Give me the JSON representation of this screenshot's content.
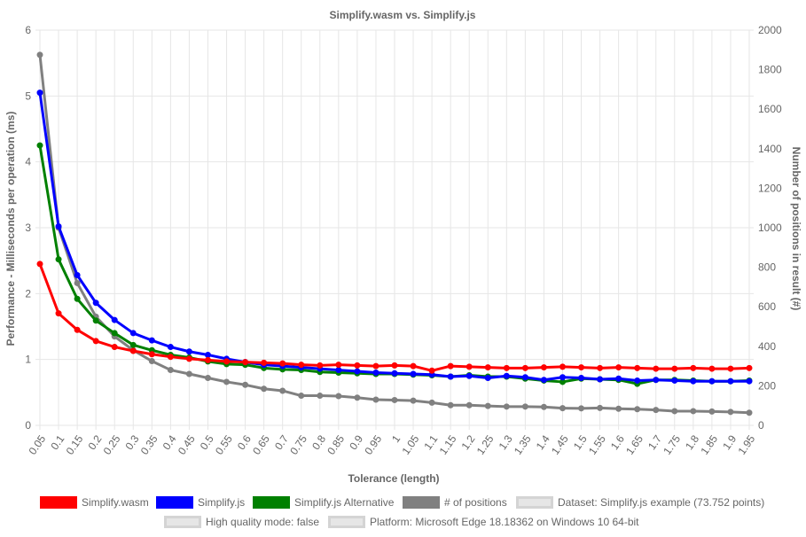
{
  "chart_data": {
    "type": "line",
    "title": "Simplify.wasm vs. Simplify.js",
    "xlabel": "Tolerance (length)",
    "ylabel": "Performance - Milliseconds per operation (ms)",
    "y2label": "Number of positions in result (#)",
    "categories": [
      "0.05",
      "0.1",
      "0.15",
      "0.2",
      "0.25",
      "0.3",
      "0.35",
      "0.4",
      "0.45",
      "0.5",
      "0.55",
      "0.6",
      "0.65",
      "0.7",
      "0.75",
      "0.8",
      "0.85",
      "0.9",
      "0.95",
      "1",
      "1.05",
      "1.1",
      "1.15",
      "1.2",
      "1.25",
      "1.3",
      "1.35",
      "1.4",
      "1.45",
      "1.5",
      "1.55",
      "1.6",
      "1.65",
      "1.7",
      "1.75",
      "1.8",
      "1.85",
      "1.9",
      "1.95"
    ],
    "ylim": [
      0,
      6
    ],
    "yticks": [
      "0",
      "1",
      "2",
      "3",
      "4",
      "5",
      "6"
    ],
    "y2lim": [
      0,
      2000
    ],
    "y2ticks": [
      "0",
      "200",
      "400",
      "600",
      "800",
      "1000",
      "1200",
      "1400",
      "1600",
      "1800",
      "2000"
    ],
    "grid": true,
    "legend_position": "bottom",
    "series": [
      {
        "name": "Simplify.wasm",
        "axis": "left",
        "color": "#ff0000",
        "values": [
          2.45,
          1.7,
          1.45,
          1.28,
          1.19,
          1.13,
          1.08,
          1.04,
          1.01,
          0.99,
          0.97,
          0.96,
          0.95,
          0.94,
          0.92,
          0.91,
          0.92,
          0.91,
          0.9,
          0.91,
          0.9,
          0.83,
          0.9,
          0.89,
          0.88,
          0.87,
          0.87,
          0.88,
          0.89,
          0.88,
          0.87,
          0.88,
          0.87,
          0.86,
          0.86,
          0.87,
          0.86,
          0.86,
          0.87
        ]
      },
      {
        "name": "Simplify.js",
        "axis": "left",
        "color": "#0000ff",
        "values": [
          5.05,
          3.02,
          2.28,
          1.86,
          1.6,
          1.4,
          1.29,
          1.19,
          1.12,
          1.07,
          1.01,
          0.96,
          0.92,
          0.9,
          0.88,
          0.86,
          0.84,
          0.82,
          0.8,
          0.79,
          0.78,
          0.77,
          0.74,
          0.75,
          0.72,
          0.75,
          0.73,
          0.69,
          0.73,
          0.72,
          0.7,
          0.71,
          0.68,
          0.69,
          0.68,
          0.67,
          0.67,
          0.67,
          0.67
        ]
      },
      {
        "name": "Simplify.js Alternative",
        "axis": "left",
        "color": "#008000",
        "values": [
          4.25,
          2.52,
          1.92,
          1.59,
          1.4,
          1.22,
          1.14,
          1.07,
          1.03,
          0.97,
          0.93,
          0.92,
          0.87,
          0.85,
          0.84,
          0.81,
          0.8,
          0.79,
          0.78,
          0.78,
          0.77,
          0.76,
          0.74,
          0.76,
          0.74,
          0.74,
          0.71,
          0.68,
          0.66,
          0.71,
          0.7,
          0.69,
          0.63,
          0.69,
          0.69,
          0.68,
          0.67,
          0.67,
          0.68
        ]
      },
      {
        "name": "# of positions",
        "axis": "right",
        "color": "#808080",
        "values": [
          1875,
          1000,
          720,
          550,
          450,
          380,
          325,
          280,
          260,
          240,
          220,
          205,
          185,
          175,
          150,
          150,
          148,
          140,
          130,
          128,
          125,
          115,
          102,
          102,
          98,
          95,
          95,
          93,
          87,
          86,
          88,
          84,
          82,
          78,
          72,
          72,
          70,
          68,
          64
        ]
      }
    ],
    "legend_extras": [
      "Dataset: Simplify.js example (73.752 points)",
      "High quality mode: false",
      "Platform: Microsoft Edge 18.18362 on Windows 10 64-bit"
    ]
  }
}
